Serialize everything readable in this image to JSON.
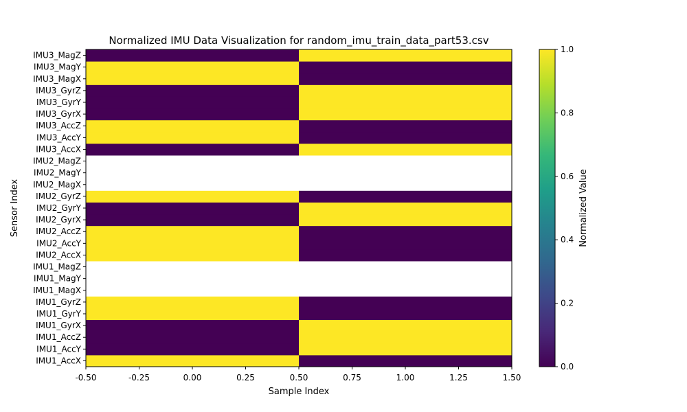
{
  "chart_data": {
    "type": "heatmap",
    "title": "Normalized IMU Data Visualization for random_imu_train_data_part53.csv",
    "xlabel": "Sample Index",
    "ylabel": "Sensor Index",
    "xlim": [
      -0.5,
      1.5
    ],
    "x_ticks": [
      "-0.50",
      "-0.25",
      "0.00",
      "0.25",
      "0.50",
      "0.75",
      "1.00",
      "1.25",
      "1.50"
    ],
    "x_tick_values": [
      -0.5,
      -0.25,
      0,
      0.25,
      0.5,
      0.75,
      1.0,
      1.25,
      1.5
    ],
    "columns": [
      0,
      1
    ],
    "rows": [
      {
        "label": "IMU1_AccX",
        "values": [
          1,
          0
        ]
      },
      {
        "label": "IMU1_AccY",
        "values": [
          0,
          1
        ]
      },
      {
        "label": "IMU1_AccZ",
        "values": [
          0,
          1
        ]
      },
      {
        "label": "IMU1_GyrX",
        "values": [
          0,
          1
        ]
      },
      {
        "label": "IMU1_GyrY",
        "values": [
          1,
          0
        ]
      },
      {
        "label": "IMU1_GyrZ",
        "values": [
          1,
          0
        ]
      },
      {
        "label": "IMU1_MagX",
        "values": [
          null,
          null
        ]
      },
      {
        "label": "IMU1_MagY",
        "values": [
          null,
          null
        ]
      },
      {
        "label": "IMU1_MagZ",
        "values": [
          null,
          null
        ]
      },
      {
        "label": "IMU2_AccX",
        "values": [
          1,
          0
        ]
      },
      {
        "label": "IMU2_AccY",
        "values": [
          1,
          0
        ]
      },
      {
        "label": "IMU2_AccZ",
        "values": [
          1,
          0
        ]
      },
      {
        "label": "IMU2_GyrX",
        "values": [
          0,
          1
        ]
      },
      {
        "label": "IMU2_GyrY",
        "values": [
          0,
          1
        ]
      },
      {
        "label": "IMU2_GyrZ",
        "values": [
          1,
          0
        ]
      },
      {
        "label": "IMU2_MagX",
        "values": [
          null,
          null
        ]
      },
      {
        "label": "IMU2_MagY",
        "values": [
          null,
          null
        ]
      },
      {
        "label": "IMU2_MagZ",
        "values": [
          null,
          null
        ]
      },
      {
        "label": "IMU3_AccX",
        "values": [
          0,
          1
        ]
      },
      {
        "label": "IMU3_AccY",
        "values": [
          1,
          0
        ]
      },
      {
        "label": "IMU3_AccZ",
        "values": [
          1,
          0
        ]
      },
      {
        "label": "IMU3_GyrX",
        "values": [
          0,
          1
        ]
      },
      {
        "label": "IMU3_GyrY",
        "values": [
          0,
          1
        ]
      },
      {
        "label": "IMU3_GyrZ",
        "values": [
          0,
          1
        ]
      },
      {
        "label": "IMU3_MagX",
        "values": [
          1,
          0
        ]
      },
      {
        "label": "IMU3_MagY",
        "values": [
          1,
          0
        ]
      },
      {
        "label": "IMU3_MagZ",
        "values": [
          0,
          1
        ]
      }
    ],
    "row_order": "bottom-to-top",
    "missing_value_color": "#ffffff",
    "colormap": "viridis",
    "colormap_stops": [
      "#440154",
      "#482878",
      "#3e4989",
      "#31688e",
      "#26828e",
      "#1f9e89",
      "#35b779",
      "#6ece58",
      "#b5de2b",
      "#fde725"
    ],
    "colorbar": {
      "label": "Normalized Value",
      "range": [
        0,
        1
      ],
      "ticks": [
        "0.0",
        "0.2",
        "0.4",
        "0.6",
        "0.8",
        "1.0"
      ],
      "tick_values": [
        0,
        0.2,
        0.4,
        0.6,
        0.8,
        1.0
      ]
    },
    "grid": false
  }
}
